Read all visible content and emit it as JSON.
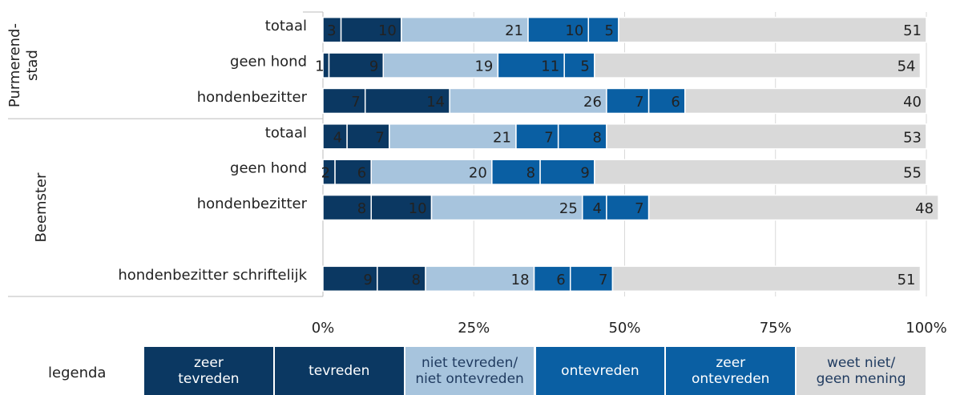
{
  "chart_data": {
    "type": "stacked_bar_horizontal",
    "categories": [
      "totaal",
      "geen hond",
      "hondenbezitter",
      "totaal",
      "geen hond",
      "hondenbezitter",
      null,
      "hondenbezitter schriftelijk"
    ],
    "groups": [
      {
        "label": [
          "Purmerend-",
          "stad"
        ],
        "rows": [
          0,
          2
        ]
      },
      {
        "label": [
          "Beemster"
        ],
        "rows": [
          3,
          7
        ]
      }
    ],
    "series": [
      {
        "name": "zeer\ntevreden",
        "color": "#0b3862",
        "text_color": "#ffffff",
        "values": [
          3,
          1,
          7,
          4,
          2,
          8,
          null,
          9
        ]
      },
      {
        "name": "tevreden",
        "color": "#0b3862",
        "text_color": "#ffffff",
        "values": [
          10,
          9,
          14,
          7,
          6,
          10,
          null,
          8
        ]
      },
      {
        "name": "niet tevreden/\nniet ontevreden",
        "color": "#a7c4dd",
        "text_color": "#1f3a5f",
        "values": [
          21,
          19,
          26,
          21,
          20,
          25,
          null,
          18
        ]
      },
      {
        "name": "ontevreden",
        "color": "#0a5fa3",
        "text_color": "#ffffff",
        "values": [
          10,
          11,
          7,
          7,
          8,
          4,
          null,
          6
        ]
      },
      {
        "name": "zeer\nontevreden",
        "color": "#0a5fa3",
        "text_color": "#ffffff",
        "values": [
          5,
          5,
          6,
          8,
          9,
          7,
          null,
          7
        ]
      },
      {
        "name": "weet niet/\ngeen mening",
        "color": "#d9d9d9",
        "text_color": "#1f3a5f",
        "values": [
          51,
          54,
          40,
          53,
          55,
          48,
          null,
          51
        ]
      }
    ],
    "legend_title": "legenda",
    "xlim": [
      0,
      100
    ],
    "xticks": [
      {
        "value": 0,
        "label": "0%"
      },
      {
        "value": 25,
        "label": "25%"
      },
      {
        "value": 50,
        "label": "50%"
      },
      {
        "value": 75,
        "label": "75%"
      },
      {
        "value": 100,
        "label": "100%"
      }
    ],
    "grid": true
  }
}
